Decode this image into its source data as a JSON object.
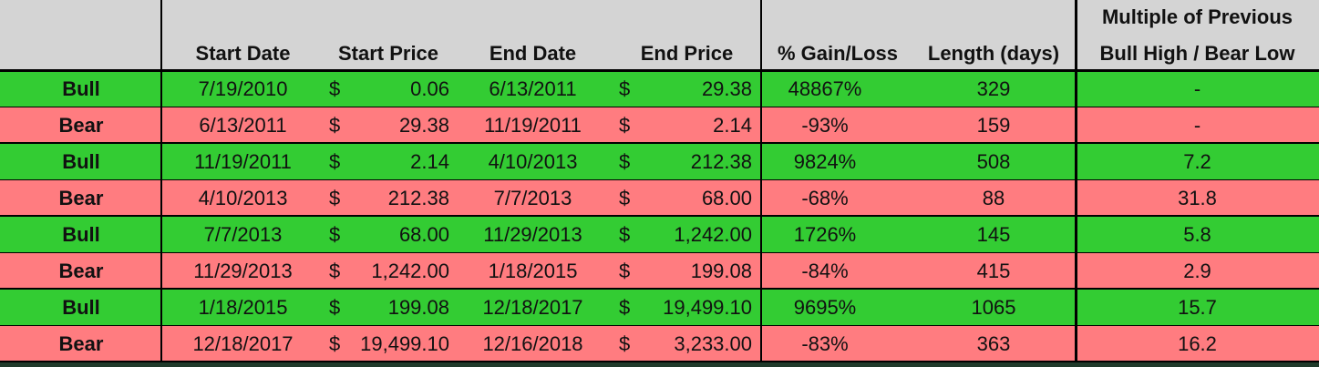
{
  "table": {
    "header": {
      "start_date": "Start Date",
      "start_price": "Start Price",
      "end_date": "End Date",
      "end_price": "End Price",
      "gain": "% Gain/Loss",
      "length": "Length (days)",
      "multiple": [
        "Multiple of Previous",
        "Bull High / Bear Low"
      ]
    },
    "rows": [
      {
        "phase": "Bull",
        "start_date": "7/19/2010",
        "start_price": {
          "symbol": "$",
          "amount": "0.06"
        },
        "end_date": "6/13/2011",
        "end_price": {
          "symbol": "$",
          "amount": "29.38"
        },
        "gain": "48867%",
        "length": "329",
        "multiple": "-"
      },
      {
        "phase": "Bear",
        "start_date": "6/13/2011",
        "start_price": {
          "symbol": "$",
          "amount": "29.38"
        },
        "end_date": "11/19/2011",
        "end_price": {
          "symbol": "$",
          "amount": "2.14"
        },
        "gain": "-93%",
        "length": "159",
        "multiple": "-"
      },
      {
        "phase": "Bull",
        "start_date": "11/19/2011",
        "start_price": {
          "symbol": "$",
          "amount": "2.14"
        },
        "end_date": "4/10/2013",
        "end_price": {
          "symbol": "$",
          "amount": "212.38"
        },
        "gain": "9824%",
        "length": "508",
        "multiple": "7.2"
      },
      {
        "phase": "Bear",
        "start_date": "4/10/2013",
        "start_price": {
          "symbol": "$",
          "amount": "212.38"
        },
        "end_date": "7/7/2013",
        "end_price": {
          "symbol": "$",
          "amount": "68.00"
        },
        "gain": "-68%",
        "length": "88",
        "multiple": "31.8"
      },
      {
        "phase": "Bull",
        "start_date": "7/7/2013",
        "start_price": {
          "symbol": "$",
          "amount": "68.00"
        },
        "end_date": "11/29/2013",
        "end_price": {
          "symbol": "$",
          "amount": "1,242.00"
        },
        "gain": "1726%",
        "length": "145",
        "multiple": "5.8"
      },
      {
        "phase": "Bear",
        "start_date": "11/29/2013",
        "start_price": {
          "symbol": "$",
          "amount": "1,242.00"
        },
        "end_date": "1/18/2015",
        "end_price": {
          "symbol": "$",
          "amount": "199.08"
        },
        "gain": "-84%",
        "length": "415",
        "multiple": "2.9"
      },
      {
        "phase": "Bull",
        "start_date": "1/18/2015",
        "start_price": {
          "symbol": "$",
          "amount": "199.08"
        },
        "end_date": "12/18/2017",
        "end_price": {
          "symbol": "$",
          "amount": "19,499.10"
        },
        "gain": "9695%",
        "length": "1065",
        "multiple": "15.7"
      },
      {
        "phase": "Bear",
        "start_date": "12/18/2017",
        "start_price": {
          "symbol": "$",
          "amount": "19,499.10"
        },
        "end_date": "12/16/2018",
        "end_price": {
          "symbol": "$",
          "amount": "3,233.00"
        },
        "gain": "-83%",
        "length": "363",
        "multiple": "16.2"
      }
    ]
  }
}
